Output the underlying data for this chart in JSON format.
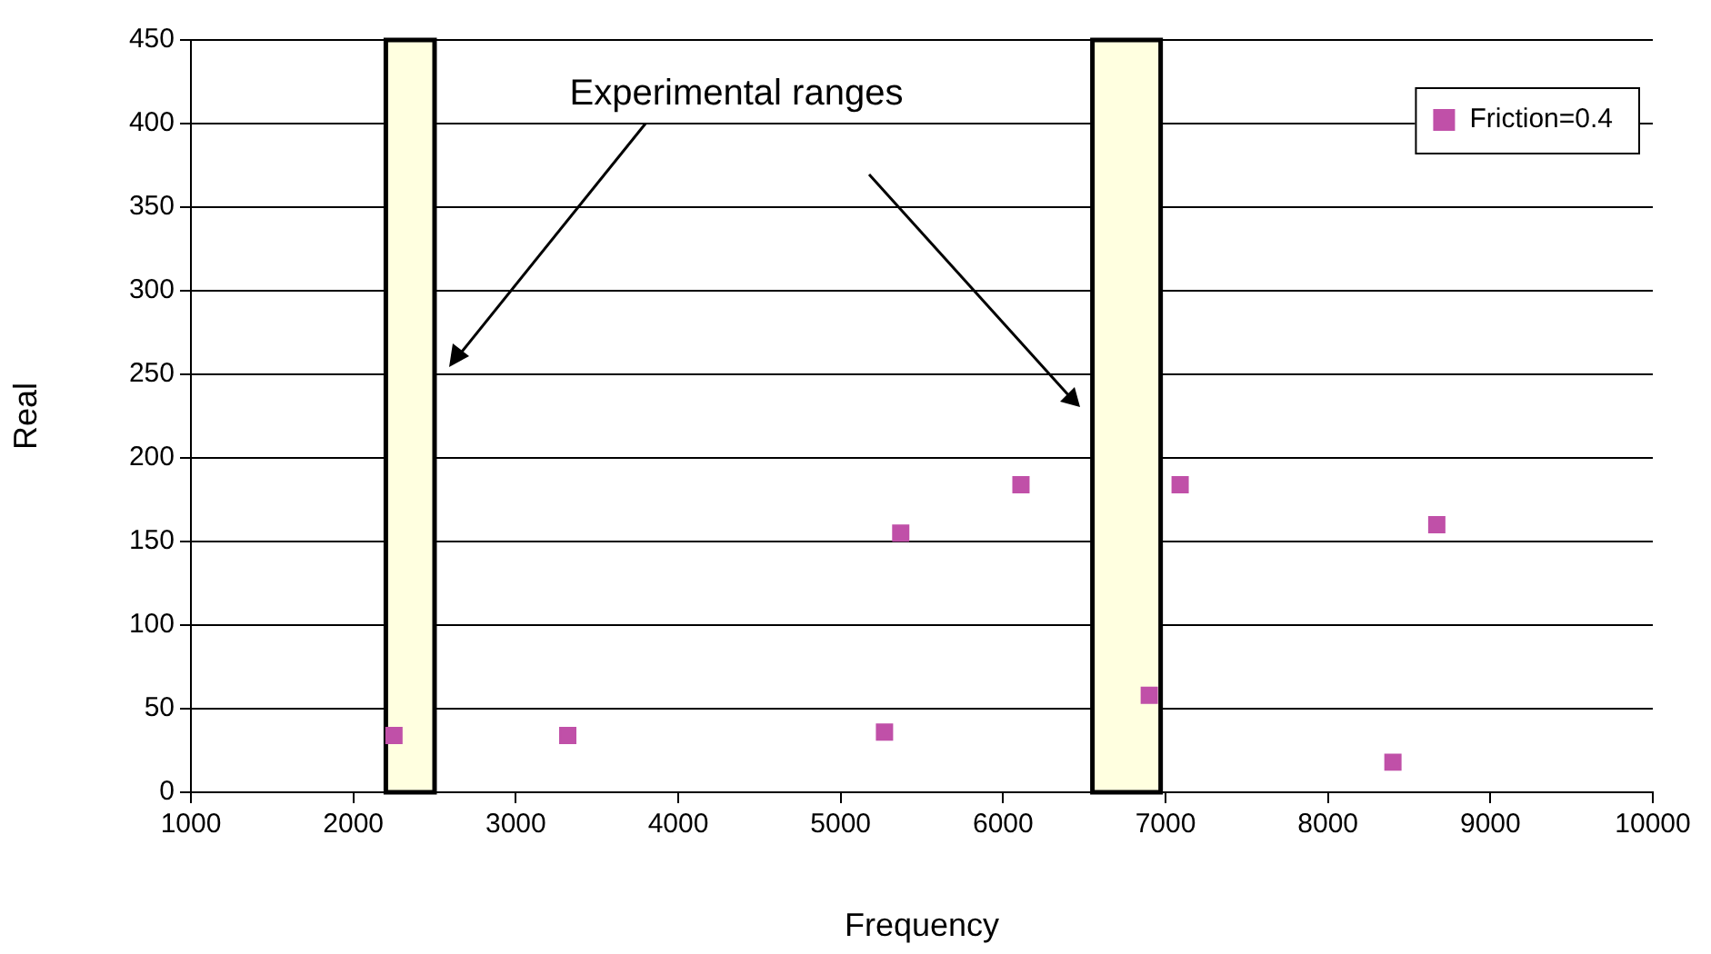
{
  "chart_data": {
    "type": "scatter",
    "xlabel": "Frequency",
    "ylabel": "Real",
    "xlim": [
      1000,
      10000
    ],
    "xticks": [
      1000,
      2000,
      3000,
      4000,
      5000,
      6000,
      7000,
      8000,
      9000,
      10000
    ],
    "ylim": [
      0,
      450
    ],
    "yticks": [
      0,
      50,
      100,
      150,
      200,
      250,
      300,
      350,
      400,
      450
    ],
    "series": [
      {
        "name": "Friction=0.4",
        "color": "#c050a8",
        "x": [
          2250,
          3320,
          5270,
          5370,
          6110,
          6900,
          7090,
          8400,
          8670
        ],
        "values": [
          34,
          34,
          36,
          155,
          184,
          58,
          184,
          18,
          160
        ]
      }
    ],
    "bands": [
      {
        "axis": "x",
        "from": 2200,
        "to": 2500,
        "color": "#ffffe0"
      },
      {
        "axis": "x",
        "from": 6550,
        "to": 6970,
        "color": "#ffffe0"
      }
    ],
    "annotations": [
      "Experimental ranges"
    ],
    "grid": "y",
    "legend": "top right",
    "marker": "square"
  }
}
